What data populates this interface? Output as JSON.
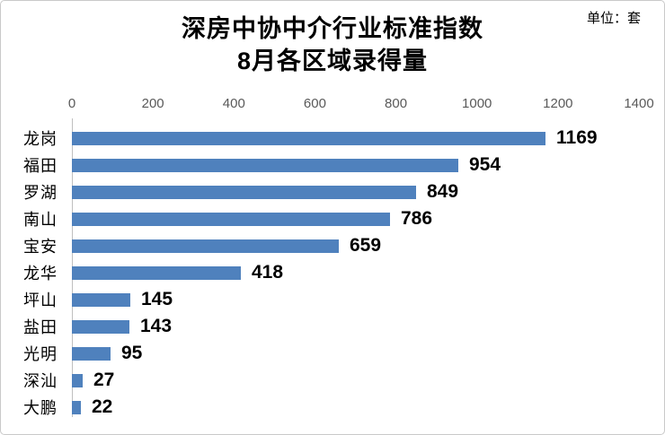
{
  "chart": {
    "title_line1": "深房中协中介行业标准指数",
    "title_line2": "8月各区域录得量",
    "unit_label": "单位：套"
  },
  "colors": {
    "bar": "#4F81BD",
    "axis_line": "#BFBFBF",
    "tick_text": "#595959",
    "text": "#000000",
    "frame_border": "#C9C9C9"
  },
  "chart_data": {
    "type": "bar",
    "orientation": "horizontal",
    "title": "深房中协中介行业标准指数 8月各区域录得量",
    "unit": "单位：套",
    "categories": [
      "龙岗",
      "福田",
      "罗湖",
      "南山",
      "宝安",
      "龙华",
      "坪山",
      "盐田",
      "光明",
      "深汕",
      "大鹏"
    ],
    "values": [
      1169,
      954,
      849,
      786,
      659,
      418,
      145,
      143,
      95,
      27,
      22
    ],
    "xlim": [
      0,
      1400
    ],
    "x_ticks": [
      0,
      200,
      400,
      600,
      800,
      1000,
      1200,
      1400
    ],
    "grid": false,
    "legend": false,
    "value_labels": true,
    "xlabel": "",
    "ylabel": ""
  }
}
